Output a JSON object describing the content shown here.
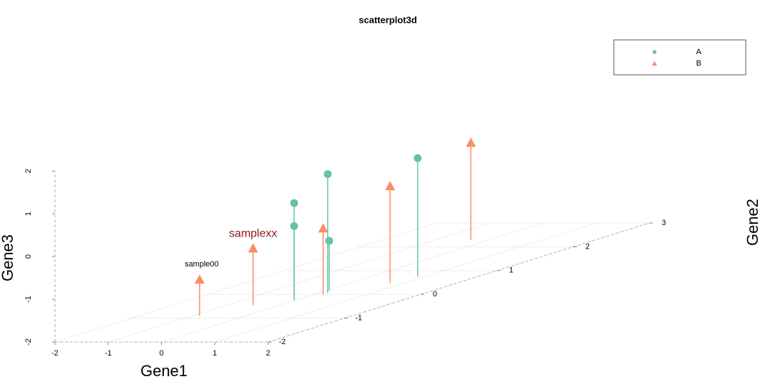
{
  "chart_data": {
    "type": "scatter3d",
    "title": "scatterplot3d",
    "x_label": "Gene1",
    "y_label": "Gene2",
    "z_label": "Gene3",
    "xlim": [
      -2,
      2
    ],
    "ylim": [
      -2,
      3
    ],
    "zlim": [
      -2,
      2
    ],
    "xticks": [
      -2,
      -1,
      0,
      1,
      2
    ],
    "yticks": [
      -2,
      -1,
      0,
      1,
      2,
      3
    ],
    "zticks": [
      -2,
      -1,
      0,
      1,
      2
    ],
    "grid": true,
    "legend": "top-right",
    "series": [
      {
        "name": "A",
        "color": "#66c2a5",
        "marker": "circle",
        "x": [
          -0.03,
          -0.03,
          0.17,
          0.07,
          0.87
        ],
        "y": [
          -0.24,
          -0.24,
          0.06,
          0.15,
          0.75
        ],
        "z": [
          -0.27,
          0.27,
          0.78,
          -0.83,
          0.77
        ],
        "point_labels": [
          null,
          null,
          null,
          null,
          null
        ],
        "point_label_colors": [
          null,
          null,
          null,
          null,
          null
        ]
      },
      {
        "name": "B",
        "color": "#fc8d62",
        "marker": "triangle",
        "x": [
          -0.86,
          -0.5,
          0.17,
          0.74,
          -0.35
        ],
        "y": [
          -0.9,
          -0.45,
          0.0,
          0.48,
          2.3
        ],
        "z": [
          -1.15,
          -0.67,
          -0.45,
          0.27,
          0.27
        ],
        "point_labels": [
          "sample00",
          "samplexx",
          null,
          null,
          null
        ],
        "point_label_colors": [
          "#000000",
          "#8b1a1a",
          null,
          null,
          null
        ]
      }
    ]
  }
}
